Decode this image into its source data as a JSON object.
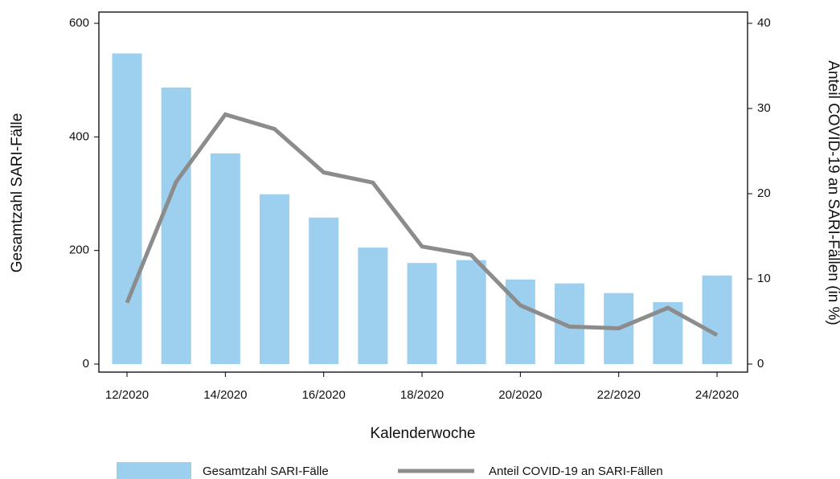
{
  "chart_data": {
    "type": "bar",
    "x_label": "Kalenderwoche",
    "y_label": "Gesamtzahl SARI-Fälle",
    "y2_label": "Anteil COVID-19 an SARI-Fällen (in %)",
    "categories": [
      "12/2020",
      null,
      "14/2020",
      null,
      "16/2020",
      null,
      "18/2020",
      null,
      "20/2020",
      null,
      "22/2020",
      null,
      "24/2020"
    ],
    "series": [
      {
        "name": "Gesamtzahl SARI-Fälle",
        "type": "bar",
        "color": "#9dcfee",
        "values": [
          547,
          487,
          371,
          299,
          258,
          205,
          178,
          183,
          149,
          142,
          125,
          109,
          156
        ]
      },
      {
        "name": "Anteil COVID-19 an SARI-Fällen",
        "type": "line",
        "axis": "y2",
        "color": "#8c8c8c",
        "values": [
          7.2,
          21.4,
          29.3,
          27.6,
          22.5,
          21.3,
          13.8,
          12.8,
          6.9,
          4.4,
          4.2,
          6.6,
          3.4
        ]
      }
    ],
    "ylim": [
      0,
      600
    ],
    "yticks": [
      0,
      200,
      400,
      600
    ],
    "y2lim": [
      0,
      40
    ],
    "y2ticks": [
      0,
      10,
      20,
      30,
      40
    ],
    "grid": false,
    "legend": "bottom"
  }
}
